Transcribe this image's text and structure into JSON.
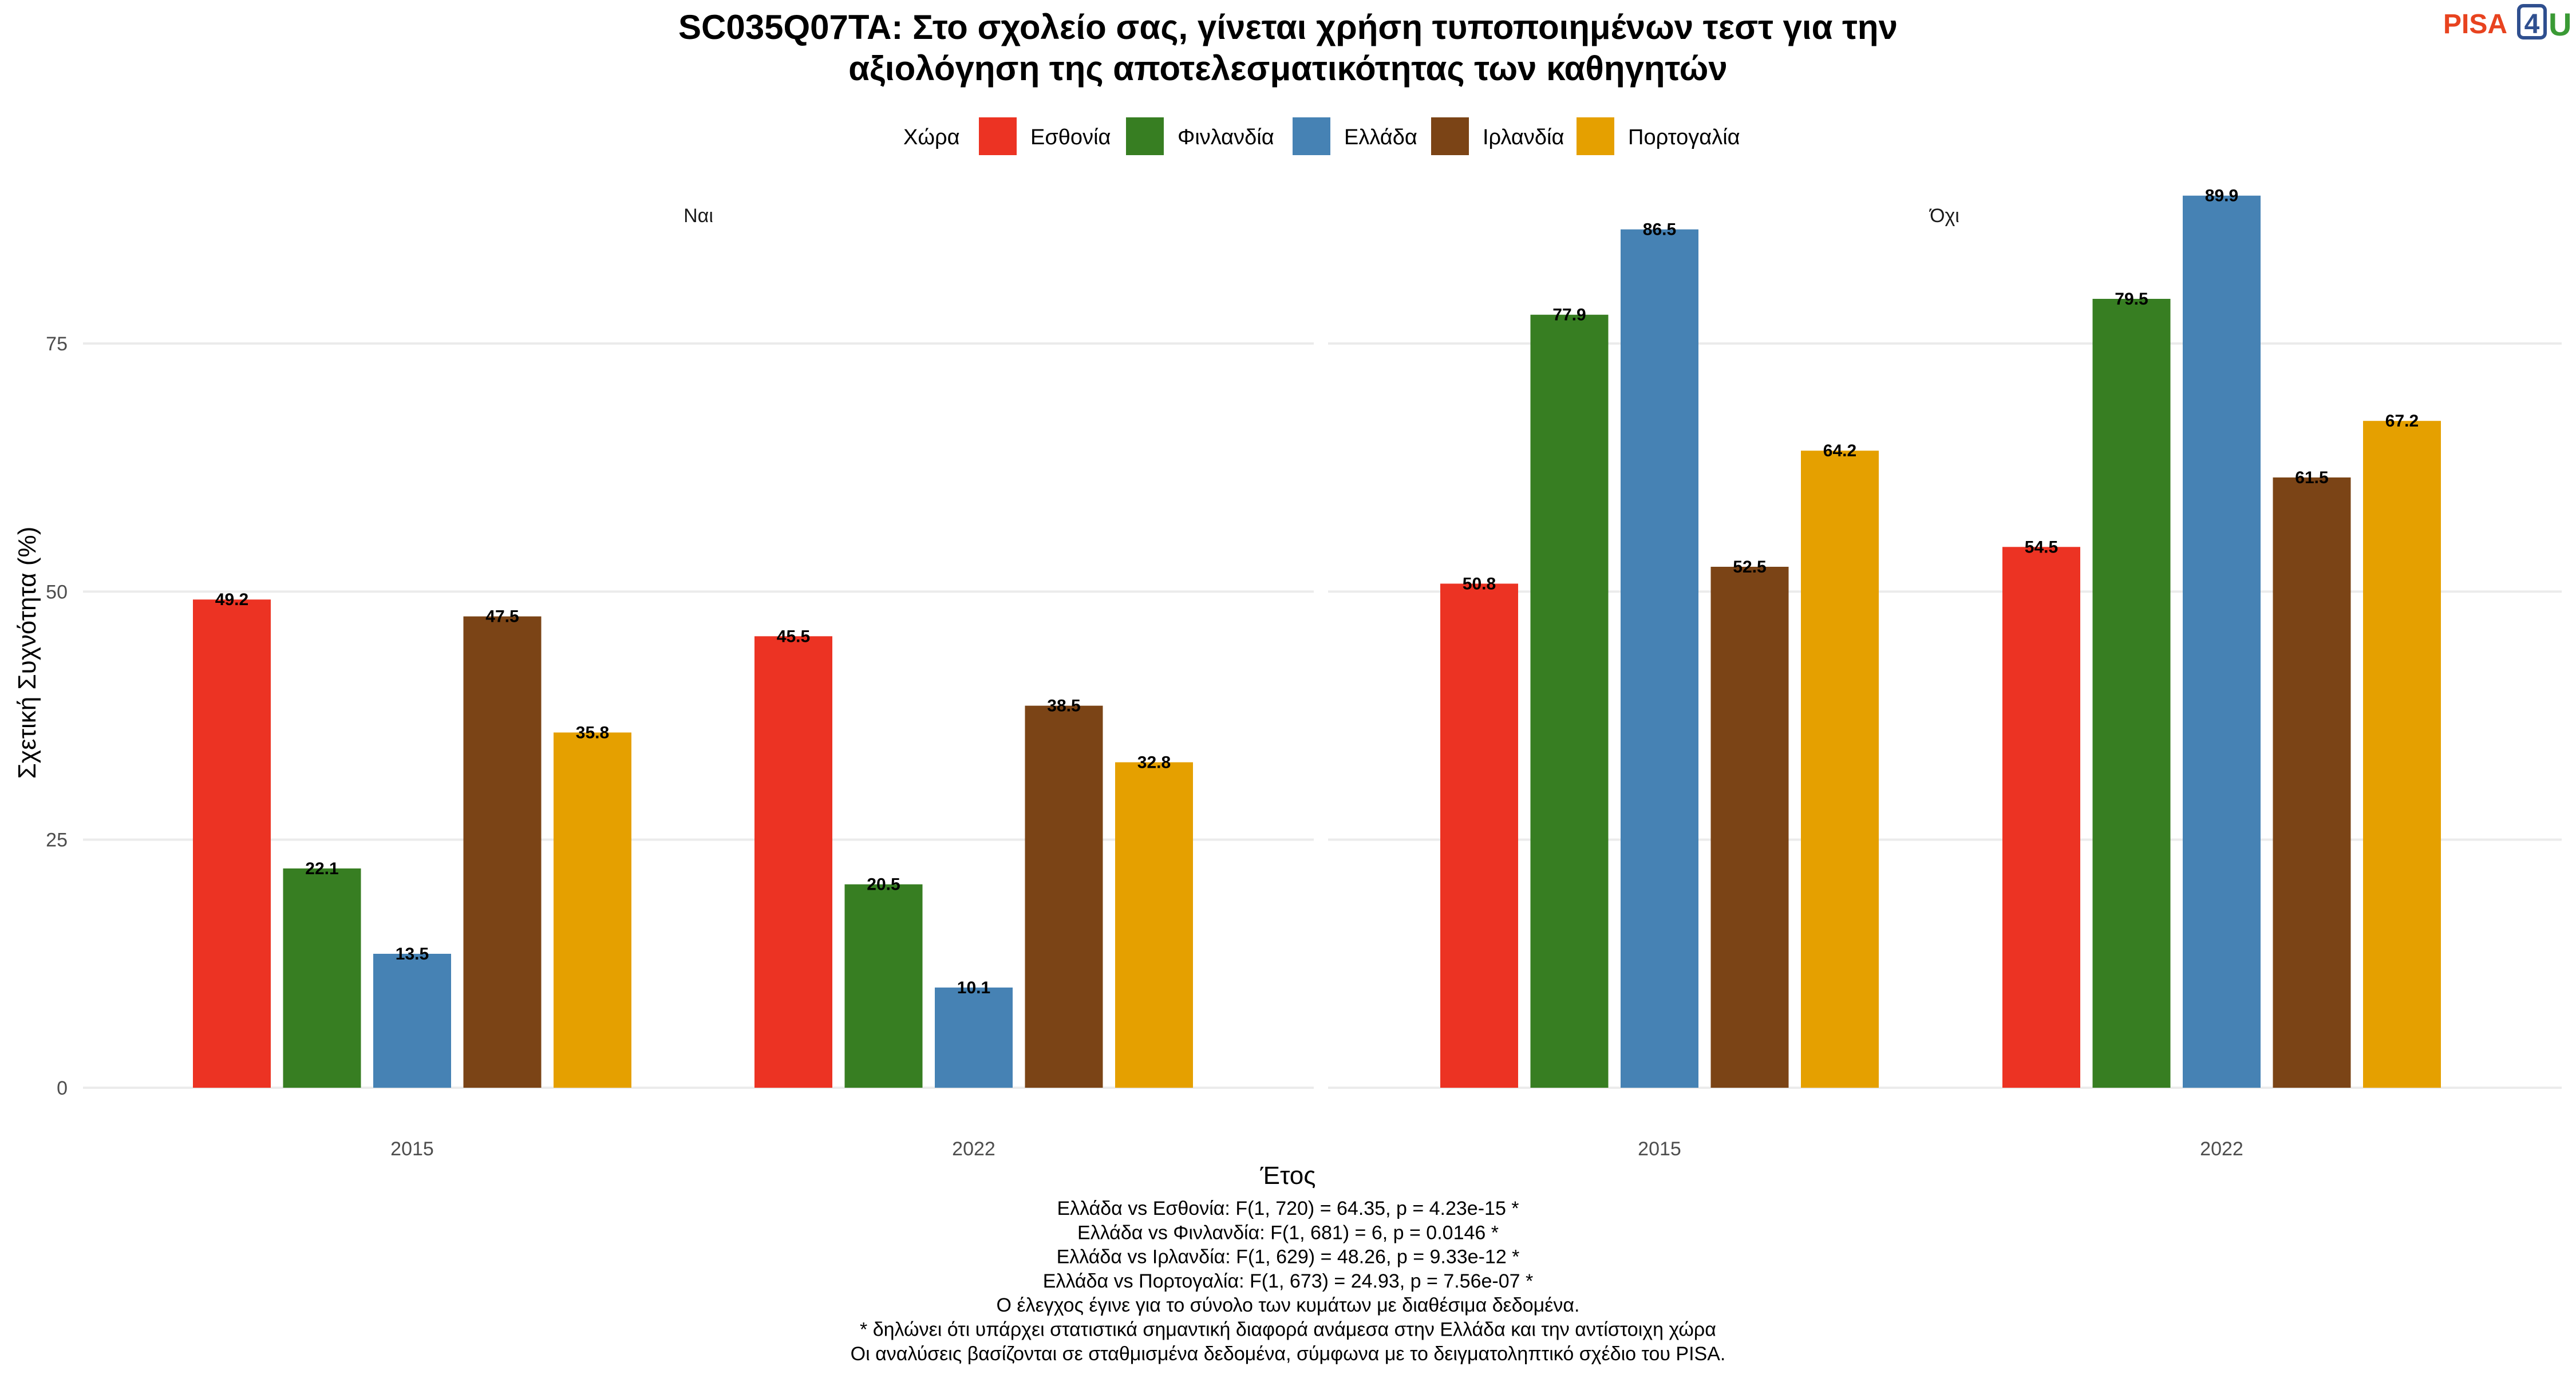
{
  "logo": {
    "part1": "PISA",
    "digit": "4",
    "part2": "U",
    "colors": {
      "part1": "#e8431f",
      "digit": "#2f4f8f",
      "part2": "#3a9a35"
    }
  },
  "chart_data": {
    "type": "bar",
    "title_lines": [
      "SC035Q07TA: Στο σχολείο σας, γίνεται χρήση τυποποιημένων τεστ για την",
      "αξιολόγηση της αποτελεσματικότητας των καθηγητών"
    ],
    "legend": {
      "title": "Χώρα",
      "placement": "top",
      "items": [
        {
          "name": "Εσθονία",
          "color": "#ec3323"
        },
        {
          "name": "Φινλανδία",
          "color": "#377e22"
        },
        {
          "name": "Ελλάδα",
          "color": "#4682b4"
        },
        {
          "name": "Ιρλανδία",
          "color": "#7b4416"
        },
        {
          "name": "Πορτογαλία",
          "color": "#e5a000"
        }
      ]
    },
    "xlabel": "Έτος",
    "ylabel": "Σχετική Συχνότητα (%)",
    "ylim": [
      0,
      90
    ],
    "yticks": [
      0,
      25,
      50,
      75
    ],
    "grid": true,
    "categories": [
      "2015",
      "2022"
    ],
    "panels": [
      {
        "label": "Ναι",
        "series": [
          {
            "name": "Εσθονία",
            "values": [
              49.2,
              45.5
            ]
          },
          {
            "name": "Φινλανδία",
            "values": [
              22.1,
              20.5
            ]
          },
          {
            "name": "Ελλάδα",
            "values": [
              13.5,
              10.1
            ]
          },
          {
            "name": "Ιρλανδία",
            "values": [
              47.5,
              38.5
            ]
          },
          {
            "name": "Πορτογαλία",
            "values": [
              35.8,
              32.8
            ]
          }
        ]
      },
      {
        "label": "Όχι",
        "series": [
          {
            "name": "Εσθονία",
            "values": [
              50.8,
              54.5
            ]
          },
          {
            "name": "Φινλανδία",
            "values": [
              77.9,
              79.5
            ]
          },
          {
            "name": "Ελλάδα",
            "values": [
              86.5,
              89.9
            ]
          },
          {
            "name": "Ιρλανδία",
            "values": [
              52.5,
              61.5
            ]
          },
          {
            "name": "Πορτογαλία",
            "values": [
              64.2,
              67.2
            ]
          }
        ]
      }
    ],
    "caption_lines": [
      "Ελλάδα vs Εσθονία: F(1, 720) = 64.35, p = 4.23e-15 *",
      "Ελλάδα vs Φινλανδία: F(1, 681) = 6, p = 0.0146 *",
      "Ελλάδα vs Ιρλανδία: F(1, 629) = 48.26, p = 9.33e-12 *",
      "Ελλάδα vs Πορτογαλία: F(1, 673) = 24.93, p = 7.56e-07 *",
      "Ο έλεγχος έγινε για το σύνολο των κυμάτων με διαθέσιμα δεδομένα.",
      "* δηλώνει ότι υπάρχει στατιστικά σημαντική διαφορά ανάμεσα στην Ελλάδα και την αντίστοιχη χώρα",
      "Οι αναλύσεις βασίζονται σε σταθμισμένα δεδομένα, σύμφωνα με το δειγματοληπτικό σχέδιο του PISA."
    ]
  }
}
